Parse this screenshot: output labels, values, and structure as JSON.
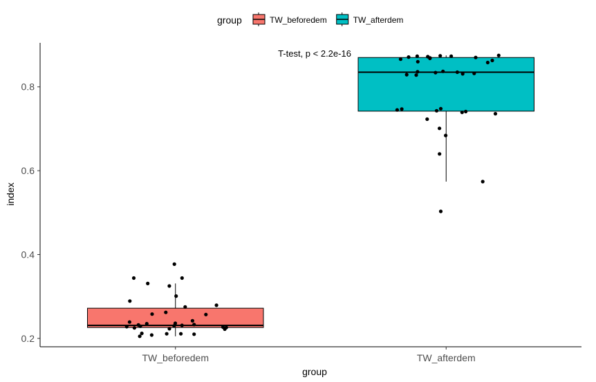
{
  "chart_data": {
    "type": "box",
    "xlabel": "group",
    "ylabel": "index",
    "ylim": [
      0.18,
      0.905
    ],
    "yticks": [
      0.2,
      0.4,
      0.6,
      0.8
    ],
    "ytick_labels": [
      "0.2",
      "0.4",
      "0.6",
      "0.8"
    ],
    "categories": [
      "TW_beforedem",
      "TW_afterdem"
    ],
    "legend": {
      "title": "group",
      "position": "top",
      "entries": [
        "TW_beforedem",
        "TW_afterdem"
      ]
    },
    "annotation": "T-test, p < 2.2e-16",
    "series": [
      {
        "name": "TW_beforedem",
        "color": "#F8766D",
        "box": {
          "q1": 0.226,
          "median": 0.231,
          "q3": 0.272,
          "whisker_low": 0.205,
          "whisker_high": 0.331
        },
        "points": [
          0.377,
          0.344,
          0.344,
          0.331,
          0.325,
          0.301,
          0.289,
          0.279,
          0.275,
          0.262,
          0.258,
          0.257,
          0.242,
          0.239,
          0.236,
          0.235,
          0.233,
          0.232,
          0.231,
          0.23,
          0.229,
          0.228,
          0.227,
          0.226,
          0.225,
          0.223,
          0.222,
          0.212,
          0.211,
          0.211,
          0.21,
          0.208,
          0.205
        ]
      },
      {
        "name": "TW_afterdem",
        "color": "#00BFC4",
        "box": {
          "q1": 0.742,
          "median": 0.835,
          "q3": 0.87,
          "whisker_low": 0.574,
          "whisker_high": 0.875
        },
        "points": [
          0.875,
          0.874,
          0.873,
          0.873,
          0.872,
          0.871,
          0.87,
          0.869,
          0.868,
          0.866,
          0.863,
          0.86,
          0.858,
          0.837,
          0.836,
          0.835,
          0.834,
          0.832,
          0.831,
          0.829,
          0.828,
          0.748,
          0.747,
          0.745,
          0.743,
          0.741,
          0.739,
          0.736,
          0.723,
          0.701,
          0.684,
          0.64,
          0.574,
          0.503
        ]
      }
    ]
  }
}
